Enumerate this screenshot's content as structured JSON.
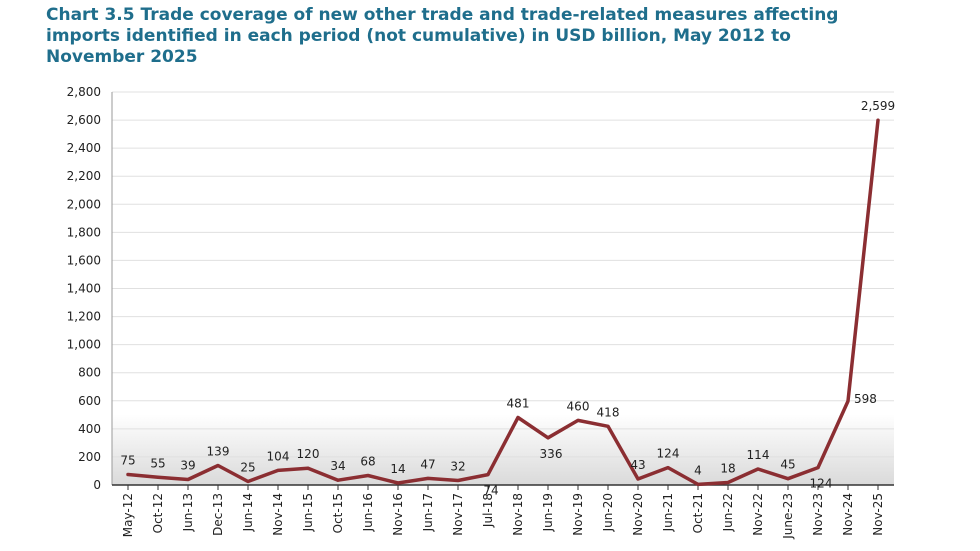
{
  "chart_data": {
    "type": "line",
    "title": "Chart 3.5 Trade coverage of new other trade and trade-related measures affecting imports identified in each period (not cumulative) in USD billion, May 2012 to November 2025",
    "xlabel": "",
    "ylabel": "",
    "ylim": [
      0,
      2800
    ],
    "yticks": [
      "0",
      "200",
      "400",
      "600",
      "800",
      "1,000",
      "1,200",
      "1,400",
      "1,600",
      "1,800",
      "2,000",
      "2,200",
      "2,400",
      "2,600",
      "2,800"
    ],
    "grid": true,
    "legend": "none",
    "line_color": "#8b2e32",
    "categories": [
      "May-12",
      "Oct-12",
      "Jun-13",
      "Dec-13",
      "Jun-14",
      "Nov-14",
      "Jun-15",
      "Oct-15",
      "Jun-16",
      "Nov-16",
      "Jun-17",
      "Nov-17",
      "Jul-18",
      "Nov-18",
      "Jun-19",
      "Nov-19",
      "Jun-20",
      "Nov-20",
      "Jun-21",
      "Oct-21",
      "Jun-22",
      "Nov-22",
      "June-23",
      "Nov-23",
      "Nov-24",
      "Nov-25"
    ],
    "values": [
      75,
      55,
      39,
      139,
      25,
      104,
      120,
      34,
      68,
      14,
      47,
      32,
      74,
      481,
      336,
      460,
      418,
      43,
      124,
      4,
      18,
      114,
      45,
      124,
      598,
      2599
    ],
    "value_labels": [
      "75",
      "55",
      "39",
      "139",
      "25",
      "104",
      "120",
      "34",
      "68",
      "14",
      "47",
      "32",
      "74",
      "481",
      "336",
      "460",
      "418",
      "43",
      "124",
      "4",
      "18",
      "114",
      "45",
      "124",
      "598",
      "2,599"
    ]
  }
}
